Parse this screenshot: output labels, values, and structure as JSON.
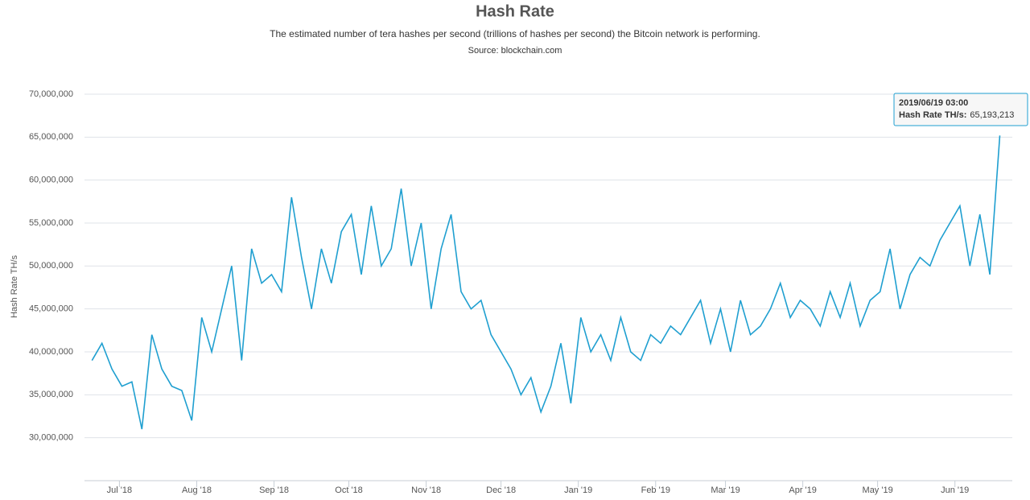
{
  "chart_data": {
    "type": "line",
    "title": "Hash Rate",
    "subtitle": "The estimated number of tera hashes per second (trillions of hashes per second) the Bitcoin network is performing.",
    "source": "Source: blockchain.com",
    "y_label": "Hash Rate TH/s",
    "x": [
      "2018-06-20",
      "2018-06-24",
      "2018-06-28",
      "2018-07-02",
      "2018-07-06",
      "2018-07-10",
      "2018-07-14",
      "2018-07-18",
      "2018-07-22",
      "2018-07-26",
      "2018-07-30",
      "2018-08-03",
      "2018-08-07",
      "2018-08-11",
      "2018-08-15",
      "2018-08-19",
      "2018-08-23",
      "2018-08-27",
      "2018-08-31",
      "2018-09-04",
      "2018-09-08",
      "2018-09-12",
      "2018-09-16",
      "2018-09-20",
      "2018-09-24",
      "2018-09-28",
      "2018-10-02",
      "2018-10-06",
      "2018-10-10",
      "2018-10-14",
      "2018-10-18",
      "2018-10-22",
      "2018-10-26",
      "2018-10-30",
      "2018-11-03",
      "2018-11-07",
      "2018-11-11",
      "2018-11-15",
      "2018-11-19",
      "2018-11-23",
      "2018-11-27",
      "2018-12-01",
      "2018-12-05",
      "2018-12-09",
      "2018-12-13",
      "2018-12-17",
      "2018-12-21",
      "2018-12-25",
      "2018-12-29",
      "2019-01-02",
      "2019-01-06",
      "2019-01-10",
      "2019-01-14",
      "2019-01-18",
      "2019-01-22",
      "2019-01-26",
      "2019-01-30",
      "2019-02-03",
      "2019-02-07",
      "2019-02-11",
      "2019-02-15",
      "2019-02-19",
      "2019-02-23",
      "2019-02-27",
      "2019-03-03",
      "2019-03-07",
      "2019-03-11",
      "2019-03-15",
      "2019-03-19",
      "2019-03-23",
      "2019-03-27",
      "2019-03-31",
      "2019-04-04",
      "2019-04-08",
      "2019-04-12",
      "2019-04-16",
      "2019-04-20",
      "2019-04-24",
      "2019-04-28",
      "2019-05-02",
      "2019-05-06",
      "2019-05-10",
      "2019-05-14",
      "2019-05-18",
      "2019-05-22",
      "2019-05-26",
      "2019-05-30",
      "2019-06-03",
      "2019-06-07",
      "2019-06-11",
      "2019-06-15",
      "2019-06-19"
    ],
    "series": [
      {
        "name": "Hash Rate TH/s",
        "color": "#1f9fd0",
        "values": [
          39000000,
          41000000,
          38000000,
          36000000,
          36500000,
          31000000,
          42000000,
          38000000,
          36000000,
          35500000,
          32000000,
          44000000,
          40000000,
          45000000,
          50000000,
          39000000,
          52000000,
          48000000,
          49000000,
          47000000,
          58000000,
          51000000,
          45000000,
          52000000,
          48000000,
          54000000,
          56000000,
          49000000,
          57000000,
          50000000,
          52000000,
          59000000,
          50000000,
          55000000,
          45000000,
          52000000,
          56000000,
          47000000,
          45000000,
          46000000,
          42000000,
          40000000,
          38000000,
          35000000,
          37000000,
          33000000,
          36000000,
          41000000,
          34000000,
          44000000,
          40000000,
          42000000,
          39000000,
          44000000,
          40000000,
          39000000,
          42000000,
          41000000,
          43000000,
          42000000,
          44000000,
          46000000,
          41000000,
          45000000,
          40000000,
          46000000,
          42000000,
          43000000,
          45000000,
          48000000,
          44000000,
          46000000,
          45000000,
          43000000,
          47000000,
          44000000,
          48000000,
          43000000,
          46000000,
          47000000,
          52000000,
          45000000,
          49000000,
          51000000,
          50000000,
          53000000,
          55000000,
          57000000,
          50000000,
          56000000,
          49000000,
          65193213
        ]
      }
    ],
    "xlim": [
      "2018-06-17",
      "2019-06-24"
    ],
    "xticks": [
      {
        "value": "2018-07-01",
        "label": "Jul '18"
      },
      {
        "value": "2018-08-01",
        "label": "Aug '18"
      },
      {
        "value": "2018-09-01",
        "label": "Sep '18"
      },
      {
        "value": "2018-10-01",
        "label": "Oct '18"
      },
      {
        "value": "2018-11-01",
        "label": "Nov '18"
      },
      {
        "value": "2018-12-01",
        "label": "Dec '18"
      },
      {
        "value": "2019-01-01",
        "label": "Jan '19"
      },
      {
        "value": "2019-02-01",
        "label": "Feb '19"
      },
      {
        "value": "2019-03-01",
        "label": "Mar '19"
      },
      {
        "value": "2019-04-01",
        "label": "Apr '19"
      },
      {
        "value": "2019-05-01",
        "label": "May '19"
      },
      {
        "value": "2019-06-01",
        "label": "Jun '19"
      }
    ],
    "ylim": [
      25000000,
      70000000
    ],
    "yticks": [
      {
        "value": 30000000,
        "label": "30,000,000"
      },
      {
        "value": 35000000,
        "label": "35,000,000"
      },
      {
        "value": 40000000,
        "label": "40,000,000"
      },
      {
        "value": 45000000,
        "label": "45,000,000"
      },
      {
        "value": 50000000,
        "label": "50,000,000"
      },
      {
        "value": 55000000,
        "label": "55,000,000"
      },
      {
        "value": 60000000,
        "label": "60,000,000"
      },
      {
        "value": 65000000,
        "label": "65,000,000"
      },
      {
        "value": 70000000,
        "label": "70,000,000"
      }
    ],
    "grid": true,
    "tooltip": {
      "title": "2019/06/19 03:00",
      "label": "Hash Rate TH/s:",
      "value": "65,193,213"
    }
  }
}
